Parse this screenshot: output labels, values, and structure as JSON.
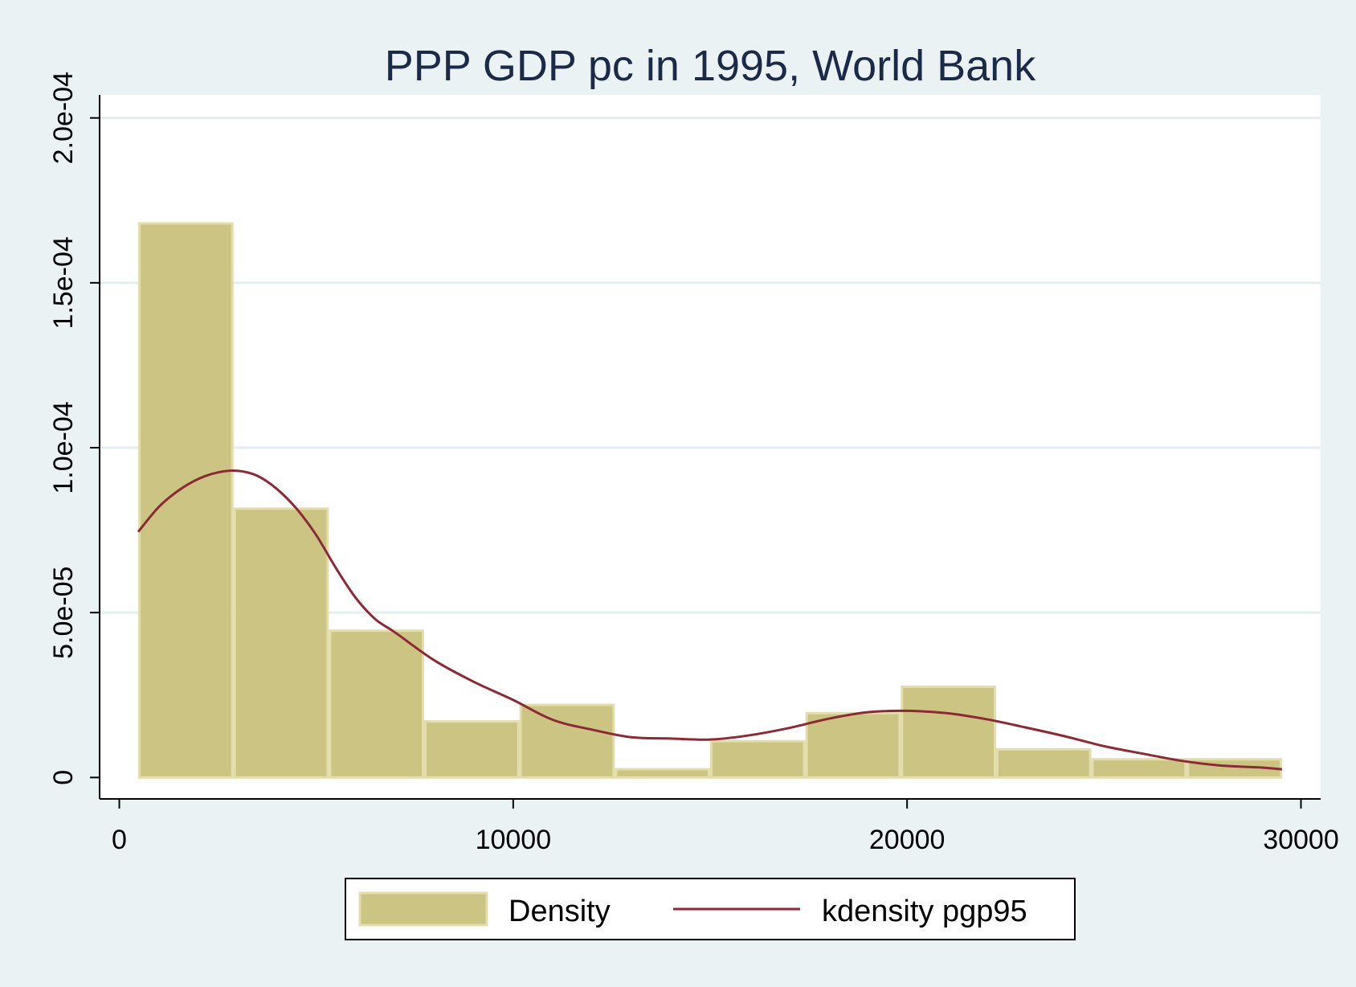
{
  "chart_data": {
    "type": "bar",
    "title": "PPP GDP pc in 1995, World Bank",
    "xlabel": "",
    "ylabel": "",
    "xlim": [
      -500,
      30500
    ],
    "ylim": [
      -6.5e-06,
      0.000207
    ],
    "x_ticks": [
      {
        "value": 0,
        "label": "0"
      },
      {
        "value": 10000,
        "label": "10000"
      },
      {
        "value": 20000,
        "label": "20000"
      },
      {
        "value": 30000,
        "label": "30000"
      }
    ],
    "y_ticks": [
      {
        "value": 0,
        "label": "0"
      },
      {
        "value": 5e-05,
        "label": "5.0e-05"
      },
      {
        "value": 0.0001,
        "label": "1.0e-04"
      },
      {
        "value": 0.00015,
        "label": "1.5e-04"
      },
      {
        "value": 0.0002,
        "label": "2.0e-04"
      }
    ],
    "grid": true,
    "legend_position": "bottom",
    "histogram": {
      "name": "Density",
      "bins": [
        {
          "x0": 480,
          "x1": 2900,
          "value": 0.000168
        },
        {
          "x0": 2900,
          "x1": 5320,
          "value": 8.15e-05
        },
        {
          "x0": 5320,
          "x1": 7740,
          "value": 4.45e-05
        },
        {
          "x0": 7740,
          "x1": 10160,
          "value": 1.7e-05
        },
        {
          "x0": 10160,
          "x1": 12580,
          "value": 2.2e-05
        },
        {
          "x0": 12580,
          "x1": 15000,
          "value": 2.5e-06
        },
        {
          "x0": 15000,
          "x1": 17420,
          "value": 1.1e-05
        },
        {
          "x0": 17420,
          "x1": 19840,
          "value": 1.95e-05
        },
        {
          "x0": 19840,
          "x1": 22260,
          "value": 2.75e-05
        },
        {
          "x0": 22260,
          "x1": 24680,
          "value": 8.5e-06
        },
        {
          "x0": 24680,
          "x1": 27100,
          "value": 5.5e-06
        },
        {
          "x0": 27100,
          "x1": 29520,
          "value": 5.5e-06
        }
      ],
      "fill": "#cbc483",
      "edge": "#e3dcab"
    },
    "kdensity": {
      "name": "kdensity pgp95",
      "color": "#8b2a35",
      "x": [
        480,
        1000,
        1500,
        2000,
        2500,
        3000,
        3500,
        4000,
        4500,
        5000,
        5500,
        6000,
        6500,
        7000,
        8000,
        9000,
        10000,
        11000,
        12000,
        13000,
        14000,
        15000,
        16000,
        17000,
        18000,
        19000,
        20000,
        21000,
        22000,
        23000,
        24000,
        25000,
        26000,
        27000,
        28000,
        29000,
        29520
      ],
      "y": [
        7.45e-05,
        8.2e-05,
        8.7e-05,
        9.05e-05,
        9.25e-05,
        9.3e-05,
        9.15e-05,
        8.75e-05,
        8.15e-05,
        7.35e-05,
        6.35e-05,
        5.45e-05,
        4.8e-05,
        4.4e-05,
        3.55e-05,
        2.9e-05,
        2.35e-05,
        1.75e-05,
        1.45e-05,
        1.22e-05,
        1.18e-05,
        1.15e-05,
        1.28e-05,
        1.5e-05,
        1.78e-05,
        1.98e-05,
        2.02e-05,
        1.95e-05,
        1.77e-05,
        1.52e-05,
        1.25e-05,
        9.5e-06,
        7.2e-06,
        5e-06,
        3.6e-06,
        3e-06,
        2.5e-06
      ]
    }
  }
}
